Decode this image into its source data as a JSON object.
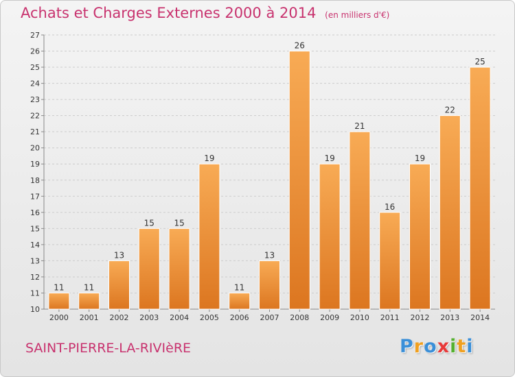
{
  "header": {
    "title": "Achats et Charges Externes 2000 à 2014",
    "subtitle": "(en milliers d'€)"
  },
  "footer": {
    "commune": "SAINT-PIERRE-LA-RIVIèRE",
    "logo": [
      "P",
      "r",
      "o",
      "x",
      "i",
      "t",
      "i"
    ],
    "logo_colors": [
      "#3a8fd8",
      "#f0a020",
      "#3a8fd8",
      "#e83a3a",
      "#55b030",
      "#f0a020",
      "#3a8fd8"
    ]
  },
  "colors": {
    "title": "#c8326e",
    "bar_light": "#f8ab55",
    "bar_dark": "#dc7620",
    "grid": "#cccccc"
  },
  "chart_data": {
    "type": "bar",
    "categories": [
      "2000",
      "2001",
      "2002",
      "2003",
      "2004",
      "2005",
      "2006",
      "2007",
      "2008",
      "2009",
      "2010",
      "2011",
      "2012",
      "2013",
      "2014"
    ],
    "values": [
      11,
      11,
      13,
      15,
      15,
      19,
      11,
      13,
      26,
      19,
      21,
      16,
      19,
      22,
      25
    ],
    "ylim": [
      10,
      27
    ],
    "yticks": [
      10,
      11,
      12,
      13,
      14,
      15,
      16,
      17,
      18,
      19,
      20,
      21,
      22,
      23,
      24,
      25,
      26,
      27
    ],
    "grid": true,
    "legend": "none",
    "xlabel": "",
    "ylabel": ""
  }
}
